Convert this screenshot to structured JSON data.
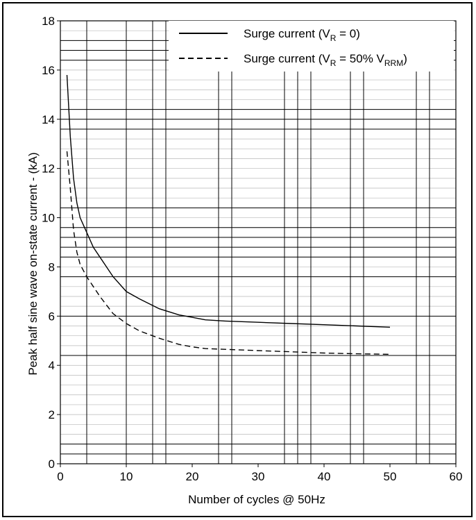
{
  "chart_data": {
    "type": "line",
    "xlabel": "Number of cycles @ 50Hz",
    "ylabel": "Peak half sine wave on-state current - (kA)",
    "xlim": [
      0,
      60
    ],
    "ylim": [
      0,
      18
    ],
    "xticks": [
      "0",
      "10",
      "20",
      "30",
      "40",
      "50",
      "60"
    ],
    "yticks": [
      "0",
      "2",
      "4",
      "6",
      "8",
      "10",
      "12",
      "14",
      "16",
      "18"
    ],
    "grid": true,
    "legend_position": "top-right",
    "series": [
      {
        "name_main": "Surge current (V",
        "name_sub": "R",
        "name_tail": " = 0)",
        "style": "solid",
        "x": [
          1,
          1.5,
          2,
          2.5,
          3,
          4,
          5,
          6,
          8,
          10,
          12,
          15,
          18,
          20,
          22,
          25,
          30,
          35,
          40,
          45,
          50
        ],
        "y": [
          15.8,
          13.3,
          11.6,
          10.6,
          10.0,
          9.4,
          8.8,
          8.4,
          7.6,
          7.0,
          6.7,
          6.3,
          6.05,
          5.95,
          5.85,
          5.8,
          5.75,
          5.7,
          5.65,
          5.6,
          5.55
        ]
      },
      {
        "name_main": "Surge current (V",
        "name_sub": "R",
        "name_mid": " = 50% V",
        "name_sub2": "RRM",
        "name_tail": ")",
        "style": "dashed",
        "x": [
          1,
          1.5,
          2,
          2.5,
          3,
          4,
          5,
          6,
          8,
          10,
          12,
          15,
          18,
          20,
          22,
          25,
          30,
          35,
          40,
          45,
          50
        ],
        "y": [
          12.7,
          11.2,
          9.5,
          8.6,
          8.1,
          7.6,
          7.2,
          6.8,
          6.1,
          5.7,
          5.4,
          5.1,
          4.85,
          4.75,
          4.68,
          4.65,
          4.6,
          4.55,
          4.5,
          4.47,
          4.45
        ]
      }
    ]
  }
}
